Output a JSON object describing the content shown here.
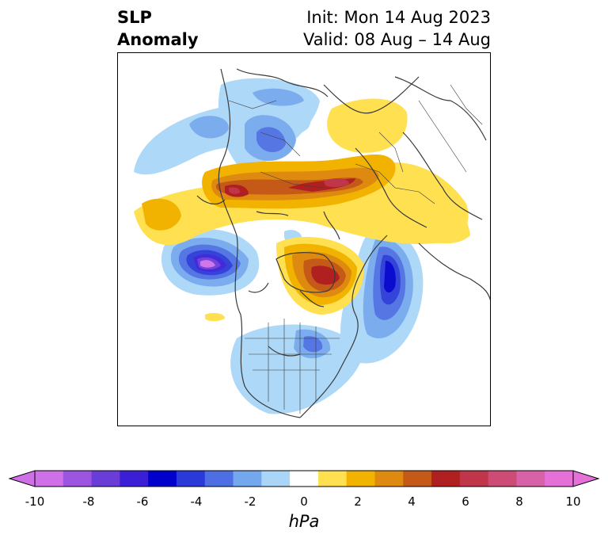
{
  "title": {
    "left_line1": "SLP",
    "left_line2": "Anomaly",
    "right_line1": "Init: Mon 14 Aug 2023",
    "right_line2": "Valid: 08 Aug – 14 Aug"
  },
  "colorbar": {
    "units": "hPa",
    "ticks": [
      "-10",
      "-8",
      "-6",
      "-4",
      "-2",
      "0",
      "2",
      "4",
      "6",
      "8",
      "10"
    ],
    "levels": [
      -10,
      -9,
      -8,
      -7,
      -6,
      -5,
      -4,
      -3,
      -2,
      -1,
      1,
      2,
      3,
      4,
      5,
      6,
      7,
      8,
      9,
      10
    ],
    "colors": [
      "#d070e8",
      "#9c55e0",
      "#6a3cd8",
      "#3b1fd6",
      "#0000cc",
      "#2a3ad8",
      "#4d6fe3",
      "#74a8ee",
      "#a9d6f8",
      "#ffffff",
      "#ffe050",
      "#f2b300",
      "#de8a10",
      "#c55a18",
      "#b02020",
      "#c0354a",
      "#cc4c75",
      "#d862a8",
      "#e470d8"
    ],
    "under_color": "#d070e8",
    "over_color": "#e470d8"
  },
  "map": {
    "projection": "north-polar-stereographic",
    "field": "SLP anomaly"
  }
}
